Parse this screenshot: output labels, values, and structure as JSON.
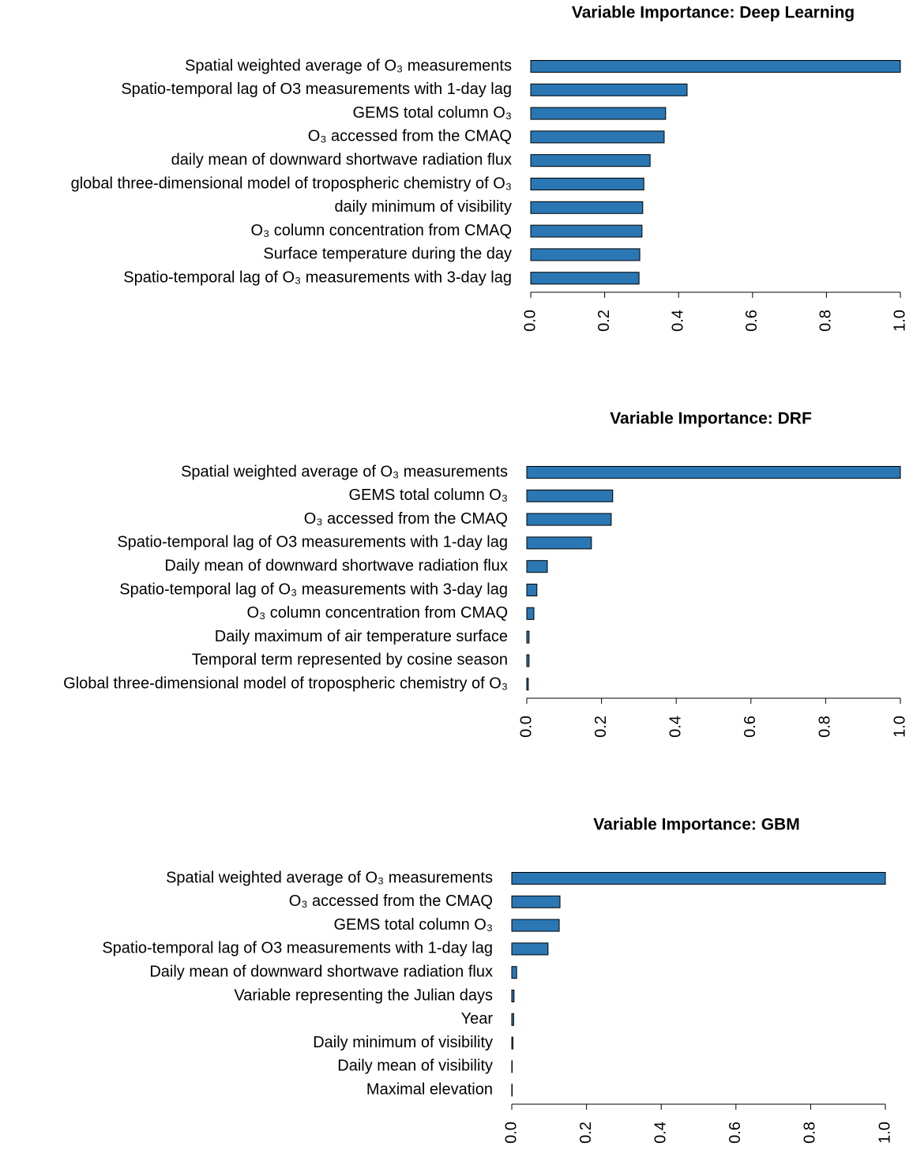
{
  "chart_data": [
    {
      "type": "barh",
      "title": "Variable Importance: Deep Learning",
      "color": "#2a77b4",
      "categories": [
        "Spatial weighted average of O₃ measurements",
        "Spatio-temporal lag of O3 measurements with 1-day lag",
        "GEMS total column O₃",
        "O₃ accessed from the CMAQ",
        "daily mean of downward shortwave radiation flux",
        "global three-dimensional model of tropospheric chemistry of O₃",
        "daily minimum of visibility",
        "O₃ column concentration from CMAQ",
        "Surface temperature during the day",
        "Spatio-temporal lag of O₃ measurements with 3-day lag"
      ],
      "values": [
        1.0,
        0.423,
        0.365,
        0.361,
        0.323,
        0.306,
        0.303,
        0.301,
        0.295,
        0.293
      ],
      "xlim": [
        0,
        1
      ],
      "xticks": [
        {
          "value": 0,
          "label": "0.0"
        },
        0.2,
        0.4,
        0.6,
        0.8,
        {
          "value": 1,
          "label": "1.0"
        }
      ]
    },
    {
      "type": "barh",
      "title": "Variable Importance: DRF",
      "color": "#2a77b4",
      "categories": [
        "Spatial weighted average of O₃ measurements",
        "GEMS total column O₃",
        "O₃ accessed from the CMAQ",
        "Spatio-temporal lag of O3 measurements with 1-day lag",
        "Daily mean of downward shortwave radiation flux",
        "Spatio-temporal lag of O₃ measurements with 3-day lag",
        "O₃ column concentration from CMAQ",
        "Daily maximum of air temperature surface",
        "Temporal term represented by cosine season",
        "Global three-dimensional model of tropospheric chemistry of O₃"
      ],
      "values": [
        1.0,
        0.23,
        0.226,
        0.173,
        0.055,
        0.027,
        0.019,
        0.006,
        0.006,
        0.004
      ],
      "xlim": [
        0,
        1
      ],
      "xticks": [
        {
          "value": 0,
          "label": "0.0"
        },
        0.2,
        0.4,
        0.6,
        0.8,
        {
          "value": 1,
          "label": "1.0"
        }
      ]
    },
    {
      "type": "barh",
      "title": "Variable Importance: GBM",
      "color": "#2a77b4",
      "categories": [
        "Spatial weighted average of O₃ measurements",
        "O₃ accessed from the CMAQ",
        "GEMS total column O₃",
        "Spatio-temporal lag of O3 measurements with 1-day lag",
        "Daily mean of downward shortwave radiation flux",
        "Variable representing the Julian days",
        "Year",
        "Daily minimum of visibility",
        "Daily mean of visibility",
        "Maximal elevation"
      ],
      "values": [
        1.0,
        0.129,
        0.127,
        0.097,
        0.013,
        0.006,
        0.005,
        0.003,
        0.001,
        0.001
      ],
      "xlim": [
        0,
        1
      ],
      "xticks": [
        {
          "value": 0,
          "label": "0.0"
        },
        0.2,
        0.4,
        0.6,
        0.8,
        {
          "value": 1,
          "label": "1.0"
        }
      ]
    }
  ]
}
